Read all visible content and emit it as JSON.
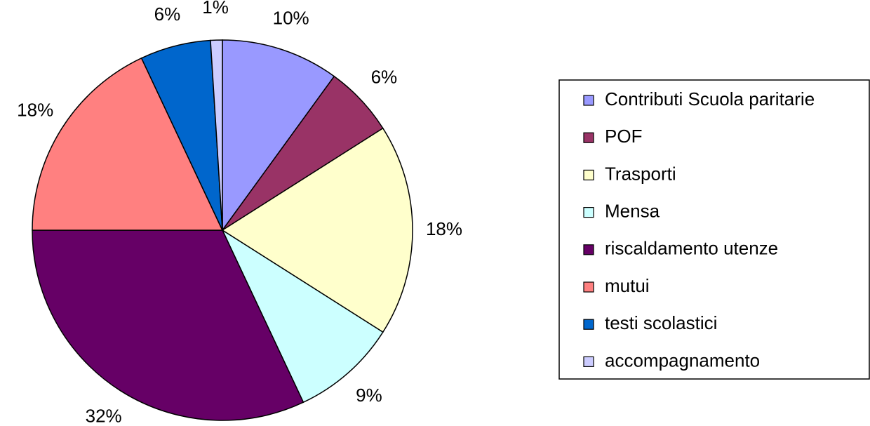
{
  "chart_data": {
    "type": "pie",
    "categories": [
      "Contributi Scuola paritarie",
      "POF",
      "Trasporti",
      "Mensa",
      "riscaldamento utenze",
      "mutui",
      "testi scolastici",
      "accompagnamento"
    ],
    "values": [
      10,
      6,
      18,
      9,
      32,
      18,
      6,
      1
    ],
    "value_labels": [
      "10%",
      "6%",
      "18%",
      "9%",
      "32%",
      "18%",
      "6%",
      "1%"
    ],
    "colors": [
      "#9999FF",
      "#993366",
      "#FFFFCC",
      "#CCFFFF",
      "#660066",
      "#FF8080",
      "#0066CC",
      "#CCCCFF"
    ],
    "legend": "right"
  }
}
